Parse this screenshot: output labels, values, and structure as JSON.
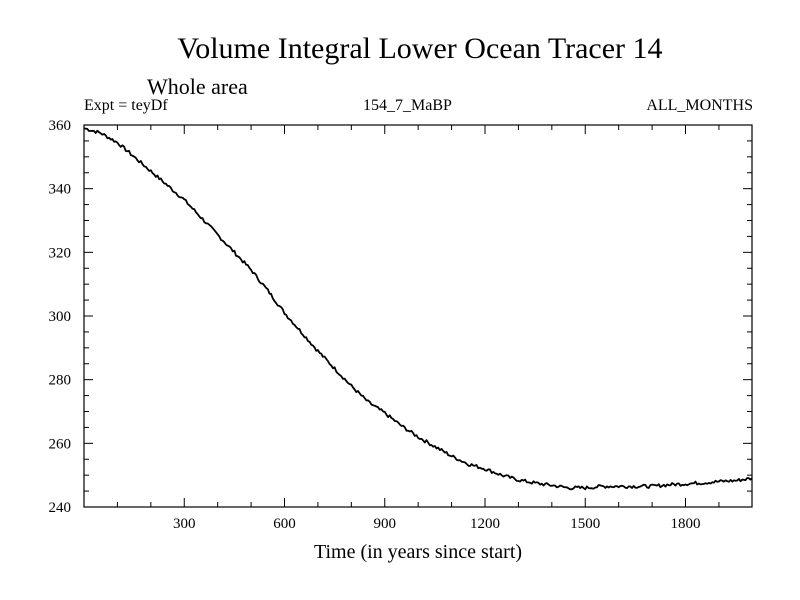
{
  "chart_data": {
    "type": "line",
    "title": "Volume Integral Lower Ocean Tracer 14",
    "subtitle": "Whole area",
    "experiment_label": "Expt = teyDf",
    "run_label": "154_7_MaBP",
    "months_label": "ALL_MONTHS",
    "xlabel": "Time (in years since start)",
    "ylabel": "",
    "xlim": [
      0,
      1999
    ],
    "ylim": [
      240,
      360
    ],
    "xticks": [
      300,
      600,
      900,
      1200,
      1500,
      1800
    ],
    "yticks": [
      240,
      260,
      280,
      300,
      320,
      340,
      360
    ],
    "series": [
      {
        "name": "Volume Integral Lower Ocean Tracer 14",
        "x": [
          0,
          50,
          100,
          150,
          200,
          250,
          300,
          350,
          400,
          450,
          500,
          550,
          600,
          650,
          700,
          750,
          800,
          850,
          900,
          950,
          1000,
          1050,
          1100,
          1150,
          1200,
          1250,
          1300,
          1350,
          1400,
          1450,
          1500,
          1550,
          1600,
          1650,
          1700,
          1750,
          1800,
          1850,
          1900,
          1950,
          1999
        ],
        "values": [
          359,
          357.5,
          354.5,
          350,
          345.5,
          341,
          336.5,
          331,
          325.5,
          320,
          314.5,
          308,
          301,
          295,
          289,
          283.5,
          278,
          273,
          269.5,
          265.5,
          262,
          259,
          256,
          253.5,
          252,
          250,
          248.5,
          247.5,
          246.8,
          246,
          246,
          246.5,
          246.5,
          246.5,
          246.5,
          247,
          247.3,
          247.6,
          248,
          248.3,
          249
        ]
      }
    ]
  }
}
